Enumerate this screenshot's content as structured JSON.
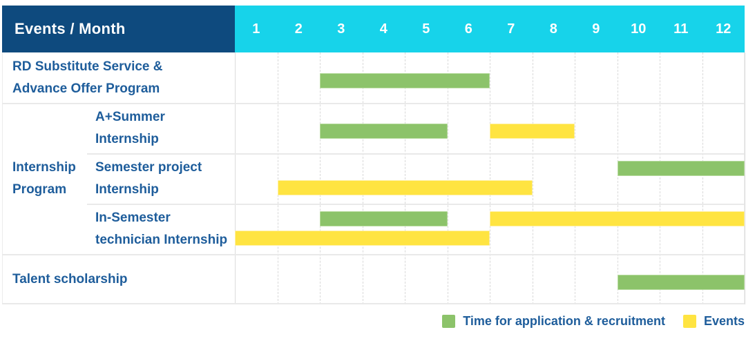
{
  "header": {
    "title": "Events / Month",
    "months": [
      "1",
      "2",
      "3",
      "4",
      "5",
      "6",
      "7",
      "8",
      "9",
      "10",
      "11",
      "12"
    ]
  },
  "group": {
    "label_lines": [
      "Internship",
      "Program"
    ]
  },
  "rows": [
    {
      "label_lines": [
        "RD Substitute Service &",
        "Advance Offer Program"
      ],
      "bars": [
        {
          "color": "green",
          "from": 3,
          "to": 6,
          "lane": "single"
        }
      ]
    },
    {
      "label_lines": [
        "A+Summer",
        "Internship"
      ],
      "bars": [
        {
          "color": "green",
          "from": 3,
          "to": 5,
          "lane": "single"
        },
        {
          "color": "yellow",
          "from": 7,
          "to": 8,
          "lane": "single"
        }
      ]
    },
    {
      "label_lines": [
        "Semester project",
        "Internship"
      ],
      "bars": [
        {
          "color": "green",
          "from": 10,
          "to": 12,
          "lane": "top"
        },
        {
          "color": "yellow",
          "from": 2,
          "to": 7,
          "lane": "bottom"
        }
      ]
    },
    {
      "label_lines": [
        "In-Semester",
        "technician Internship"
      ],
      "bars": [
        {
          "color": "green",
          "from": 3,
          "to": 5,
          "lane": "top"
        },
        {
          "color": "yellow",
          "from": 7,
          "to": 12,
          "lane": "top"
        },
        {
          "color": "yellow",
          "from": 1,
          "to": 6,
          "lane": "bottom"
        }
      ]
    },
    {
      "label_lines": [
        "Talent scholarship"
      ],
      "bars": [
        {
          "color": "green",
          "from": 10,
          "to": 12,
          "lane": "single"
        }
      ]
    }
  ],
  "legend": [
    {
      "color": "green",
      "label": "Time for application & recruitment"
    },
    {
      "color": "yellow",
      "label": "Events"
    }
  ],
  "colors": {
    "header_bg": "#0e4a7e",
    "months_bg": "#17d3ea",
    "green": "#8cc36a",
    "yellow": "#ffe441",
    "label_text": "#1e5d9b",
    "grid": "#dcdcdc"
  },
  "chart_data": {
    "type": "gantt",
    "title": "Events / Month",
    "x_axis": {
      "label": "Month",
      "ticks": [
        1,
        2,
        3,
        4,
        5,
        6,
        7,
        8,
        9,
        10,
        11,
        12
      ],
      "range": [
        1,
        12
      ]
    },
    "legend_entries": [
      {
        "kind": "application",
        "color": "#8cc36a",
        "label": "Time for application & recruitment"
      },
      {
        "kind": "event",
        "color": "#ffe441",
        "label": "Events"
      }
    ],
    "tasks": [
      {
        "row": "RD Substitute Service & Advance Offer Program",
        "group": null,
        "spans": [
          {
            "kind": "application",
            "months": [
              3,
              6
            ]
          }
        ]
      },
      {
        "row": "A+Summer Internship",
        "group": "Internship Program",
        "spans": [
          {
            "kind": "application",
            "months": [
              3,
              5
            ]
          },
          {
            "kind": "event",
            "months": [
              7,
              8
            ]
          }
        ]
      },
      {
        "row": "Semester project Internship",
        "group": "Internship Program",
        "spans": [
          {
            "kind": "application",
            "months": [
              10,
              12
            ]
          },
          {
            "kind": "event",
            "months": [
              2,
              7
            ]
          }
        ]
      },
      {
        "row": "In-Semester technician Internship",
        "group": "Internship Program",
        "spans": [
          {
            "kind": "application",
            "months": [
              3,
              5
            ]
          },
          {
            "kind": "event",
            "months": [
              7,
              12
            ]
          },
          {
            "kind": "event",
            "months": [
              1,
              6
            ]
          }
        ]
      },
      {
        "row": "Talent scholarship",
        "group": null,
        "spans": [
          {
            "kind": "application",
            "months": [
              10,
              12
            ]
          }
        ]
      }
    ],
    "grid": "dashed-vertical-month-lines",
    "legend_position": "bottom-right"
  }
}
